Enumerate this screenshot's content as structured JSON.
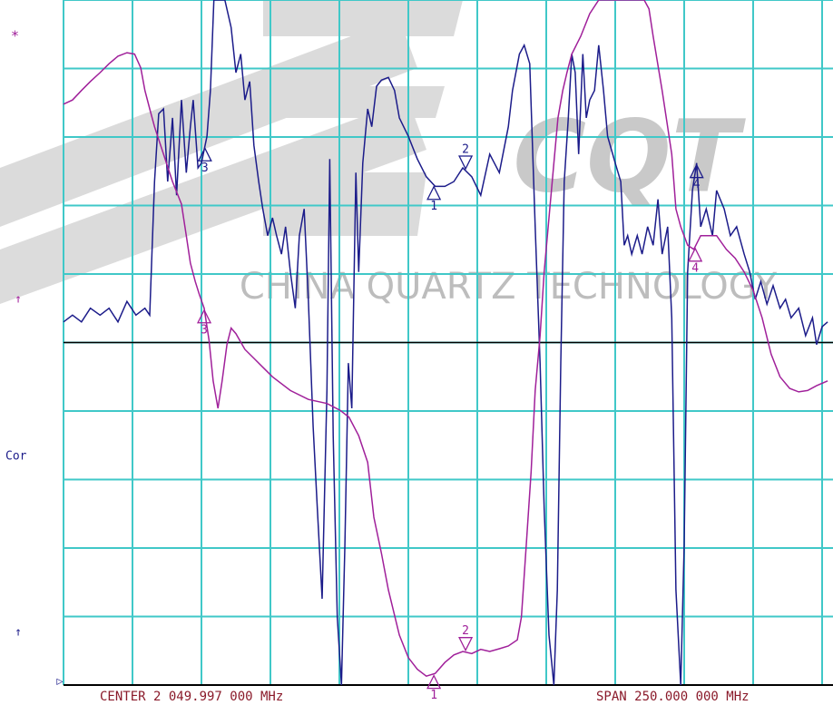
{
  "chart_data": {
    "type": "line",
    "center_label": "CENTER 2 049.997 000 MHz",
    "span_label": "SPAN 250.000 000 MHz",
    "annotations": [
      {
        "text": "*",
        "color": "#a0209a"
      },
      {
        "text": "↑",
        "color": "#a0209a"
      },
      {
        "text": "Cor",
        "color": "#1c1c8a"
      },
      {
        "text": "↑",
        "color": "#1c1c8a"
      },
      {
        "text": "▷",
        "color": "#1c1c8a"
      }
    ],
    "watermark": {
      "logo": "CQT",
      "name": "CHINA QUARTZ TECHNOLOGY"
    },
    "xlim": [
      0,
      110
    ],
    "ylim": [
      0,
      100
    ],
    "xticks": [
      0,
      10,
      20,
      30,
      40,
      50,
      60,
      70,
      80,
      90,
      100,
      110
    ],
    "yticks": [
      0,
      10,
      20,
      30,
      40,
      50,
      60,
      70,
      80,
      90,
      100
    ],
    "grid": true,
    "grid_color": "#40c8c8",
    "reference_y": 50,
    "series": [
      {
        "color": "#1c1c8a",
        "x": [
          0,
          1.3,
          2.6,
          3.9,
          5.3,
          6.6,
          7.9,
          9.2,
          10.5,
          11.8,
          12.5,
          13.2,
          13.8,
          14.5,
          15.1,
          15.8,
          16.4,
          17.1,
          17.8,
          18.4,
          18.8,
          19.5,
          20,
          20.8,
          21.3,
          21.8,
          23.4,
          24.3,
          25,
          25.7,
          26.3,
          27,
          27.6,
          28.3,
          28.9,
          29.6,
          30.3,
          30.9,
          31.6,
          32.2,
          32.9,
          33.6,
          34.2,
          34.9,
          35.5,
          36.2,
          36.8,
          37.5,
          38.2,
          38.6,
          39.1,
          39.7,
          40.3,
          40.8,
          41.3,
          41.8,
          42.4,
          42.8,
          43.4,
          44.1,
          44.7,
          45.4,
          46.1,
          47.1,
          48,
          48.7,
          50,
          51.3,
          52.6,
          53.9,
          55.3,
          56.6,
          57.9,
          59.2,
          60.5,
          61.8,
          63.2,
          64.5,
          65.1,
          66.1,
          66.8,
          67.6,
          68.4,
          69.1,
          69.7,
          70.4,
          71.1,
          71.6,
          72.1,
          72.6,
          73.2,
          73.7,
          74.2,
          74.7,
          75.3,
          75.8,
          76.3,
          77,
          77.6,
          78.3,
          78.9,
          80,
          80.8,
          81.3,
          81.8,
          82.4,
          83.2,
          83.9,
          84.7,
          85.5,
          86.2,
          86.8,
          87.6,
          88.2,
          88.8,
          89.5,
          90,
          90.5,
          91.2,
          91.8,
          92.4,
          93.2,
          94.1,
          94.7,
          95.8,
          96.7,
          97.6,
          98.7,
          99.5,
          100.3,
          101.1,
          102,
          102.9,
          103.9,
          104.7,
          105.5,
          106.6,
          107.6,
          108.6,
          109.2,
          110,
          110.8
        ],
        "values": [
          53,
          54,
          53,
          55,
          54,
          55,
          53,
          56,
          54,
          55,
          54,
          73.5,
          83.4,
          84.1,
          73.5,
          82.8,
          71.5,
          85.4,
          74.8,
          81.5,
          85.4,
          75.5,
          76.2,
          80.1,
          86.8,
          100,
          100,
          96,
          89.4,
          92.1,
          85.4,
          88.1,
          78.8,
          73.5,
          69.5,
          65.6,
          68.2,
          65.6,
          62.9,
          66.9,
          60.3,
          55,
          65.6,
          69.5,
          56.3,
          37.7,
          25.8,
          12.6,
          43,
          76.8,
          36.4,
          9.9,
          0,
          20.5,
          47,
          40.4,
          74.8,
          60.3,
          76.2,
          84.1,
          81.5,
          87.4,
          88.3,
          88.7,
          86.8,
          82.8,
          80.1,
          76.8,
          74.2,
          72.8,
          72.8,
          73.5,
          75.5,
          74.2,
          71.5,
          77.5,
          74.8,
          81.5,
          86.8,
          92.1,
          93.4,
          90.7,
          66.9,
          47,
          25.8,
          7.3,
          0,
          13.9,
          47,
          73.5,
          82.8,
          92.1,
          89.4,
          77.5,
          92.1,
          82.8,
          85.4,
          86.8,
          93.4,
          86.8,
          80.1,
          76.2,
          73.5,
          64.2,
          65.6,
          62.9,
          65.6,
          62.9,
          66.9,
          64.2,
          70.9,
          62.9,
          66.9,
          53.6,
          13.9,
          0,
          20.5,
          60.3,
          72.2,
          76.2,
          66.9,
          69.5,
          65.6,
          72.2,
          69.5,
          65.6,
          66.9,
          62.9,
          60.3,
          56.3,
          58.9,
          55.6,
          58.3,
          55,
          56.3,
          53.6,
          55,
          51,
          53.6,
          49.7,
          52.3,
          53
        ],
        "markers": [
          {
            "label": "1",
            "x": 53.7,
            "direction": "up"
          },
          {
            "label": "2",
            "x": 58.3,
            "direction": "down"
          },
          {
            "label": "3",
            "x": 20.5,
            "direction": "up"
          },
          {
            "label": "4",
            "x": 91.8,
            "direction": "up"
          }
        ]
      },
      {
        "color": "#a0209a",
        "x": [
          0,
          1.3,
          2.6,
          3.9,
          5.3,
          6.6,
          7.9,
          9.2,
          10.3,
          11.2,
          11.8,
          12.5,
          13.2,
          14.5,
          15.8,
          17.1,
          17.8,
          18.4,
          19.1,
          19.7,
          20.4,
          21.1,
          21.7,
          22.4,
          23,
          23.7,
          24.3,
          25,
          26.3,
          27.6,
          28.9,
          30.3,
          32.9,
          35.5,
          38.2,
          40.1,
          41.4,
          42.8,
          44.1,
          45,
          46.1,
          47.1,
          48.7,
          50,
          51.3,
          52.6,
          53.9,
          55.3,
          56.6,
          57.9,
          59.2,
          60.5,
          61.8,
          63.2,
          64.5,
          65.8,
          66.4,
          67.1,
          67.8,
          68.4,
          69.1,
          69.7,
          70.4,
          71.1,
          71.7,
          72.4,
          73,
          73.7,
          75,
          76.3,
          77.6,
          84.2,
          84.9,
          85.5,
          86.8,
          88.2,
          88.8,
          89.5,
          90.5,
          91.4,
          92.4,
          94.7,
          96.1,
          97.4,
          98.7,
          100,
          101.3,
          102.6,
          103.9,
          105.3,
          106.6,
          107.9,
          109.2,
          110.8
        ],
        "values": [
          84.8,
          85.4,
          86.8,
          88.1,
          89.4,
          90.7,
          91.8,
          92.3,
          92.1,
          90.1,
          86.8,
          84.1,
          81.5,
          77.5,
          73.5,
          70.2,
          65.6,
          61.6,
          58.9,
          57,
          55,
          50.3,
          44.4,
          40.4,
          44.4,
          49.7,
          52.1,
          51.3,
          49,
          47.7,
          46.4,
          45,
          43,
          41.7,
          41.1,
          40.1,
          39.1,
          36.4,
          32.5,
          24.5,
          19.2,
          13.9,
          7.3,
          4,
          2.3,
          1.3,
          1.7,
          3.3,
          4.4,
          4.9,
          4.6,
          5.2,
          4.9,
          5.3,
          5.7,
          6.6,
          9.9,
          20.5,
          31.1,
          43,
          51,
          60.3,
          68.2,
          76.2,
          82.8,
          86.8,
          89.4,
          92.1,
          94.7,
          98,
          100,
          100,
          98.7,
          94.7,
          86.8,
          77.5,
          69.5,
          66.9,
          64.2,
          63.6,
          65.6,
          65.6,
          63.6,
          62.3,
          60.3,
          57.6,
          53.6,
          48.3,
          45,
          43.3,
          42.8,
          43,
          43.7,
          44.4
        ],
        "markers": [
          {
            "label": "1",
            "x": 53.7,
            "direction": "up"
          },
          {
            "label": "2",
            "x": 58.3,
            "direction": "down"
          },
          {
            "label": "3",
            "x": 20.4,
            "direction": "up"
          },
          {
            "label": "4",
            "x": 91.6,
            "direction": "up"
          }
        ]
      }
    ]
  }
}
